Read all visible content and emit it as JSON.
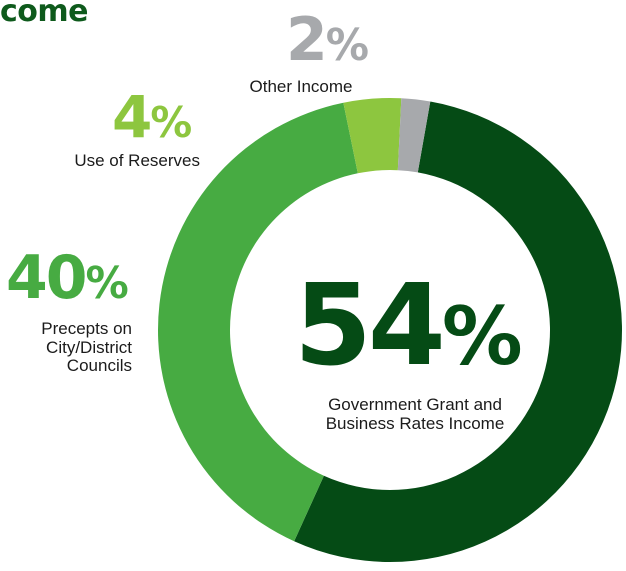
{
  "title": "come",
  "chart_data": {
    "type": "pie",
    "title": "come",
    "slices": [
      {
        "label": "Government Grant and Business Rates Income",
        "value": 54,
        "display": "54%",
        "color": "#054b15"
      },
      {
        "label": "Precepts on City/District Councils",
        "value": 40,
        "display": "40%",
        "color": "#47ab42"
      },
      {
        "label": "Use of Reserves",
        "value": 4,
        "display": "4%",
        "color": "#8dc63f"
      },
      {
        "label": "Other Income",
        "value": 2,
        "display": "2%",
        "color": "#a7a9ac"
      }
    ]
  },
  "labels": {
    "other": {
      "number": "2",
      "symbol": "%",
      "lines": [
        "Other Income"
      ]
    },
    "reserves": {
      "number": "4",
      "symbol": "%",
      "lines": [
        "Use of Reserves"
      ]
    },
    "precepts": {
      "number": "40",
      "symbol": "%",
      "lines": [
        "Precepts on",
        "City/District",
        "Councils"
      ]
    },
    "government": {
      "number": "54",
      "symbol": "%",
      "lines": [
        "Government Grant and",
        "Business Rates Income"
      ]
    }
  }
}
